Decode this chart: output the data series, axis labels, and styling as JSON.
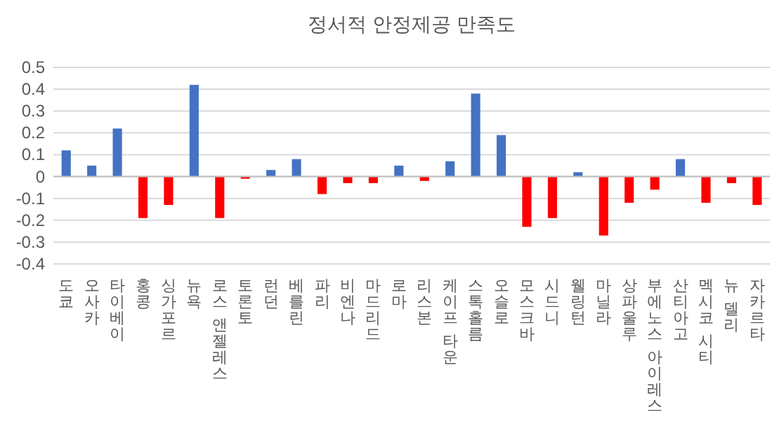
{
  "chart_data": {
    "type": "bar",
    "title": "정서적 안정제공 만족도",
    "categories": [
      "도쿄",
      "오사카",
      "타이베이",
      "홍콩",
      "싱가포르",
      "뉴욕",
      "로스 앤젤레스",
      "토론토",
      "런던",
      "베를린",
      "파리",
      "비엔나",
      "마드리드",
      "로마",
      "리스본",
      "케이프 타운",
      "스톡홀름",
      "오슬로",
      "모스크바",
      "시드니",
      "웰링턴",
      "마닐라",
      "상파울루",
      "부에노스 아이레스",
      "산티아고",
      "멕시코 시티",
      "뉴 델리",
      "자카르타"
    ],
    "values": [
      0.12,
      0.05,
      0.22,
      -0.19,
      -0.13,
      0.42,
      -0.19,
      -0.01,
      0.03,
      0.08,
      -0.08,
      -0.03,
      -0.03,
      0.05,
      -0.02,
      0.07,
      0.38,
      0.19,
      -0.23,
      -0.19,
      0.02,
      -0.27,
      -0.12,
      -0.06,
      0.08,
      -0.12,
      -0.03,
      -0.13
    ],
    "colors": [
      "#4472c4",
      "#4472c4",
      "#4472c4",
      "#ff0000",
      "#ff0000",
      "#4472c4",
      "#ff0000",
      "#ff0000",
      "#4472c4",
      "#4472c4",
      "#ff0000",
      "#ff0000",
      "#ff0000",
      "#4472c4",
      "#ff0000",
      "#4472c4",
      "#4472c4",
      "#4472c4",
      "#ff0000",
      "#ff0000",
      "#4472c4",
      "#ff0000",
      "#ff0000",
      "#ff0000",
      "#4472c4",
      "#ff0000",
      "#ff0000",
      "#ff0000"
    ],
    "ylim": [
      -0.4,
      0.5
    ],
    "yticks": [
      -0.4,
      -0.3,
      -0.2,
      -0.1,
      0,
      0.1,
      0.2,
      0.3,
      0.4,
      0.5
    ],
    "grid": "y"
  }
}
